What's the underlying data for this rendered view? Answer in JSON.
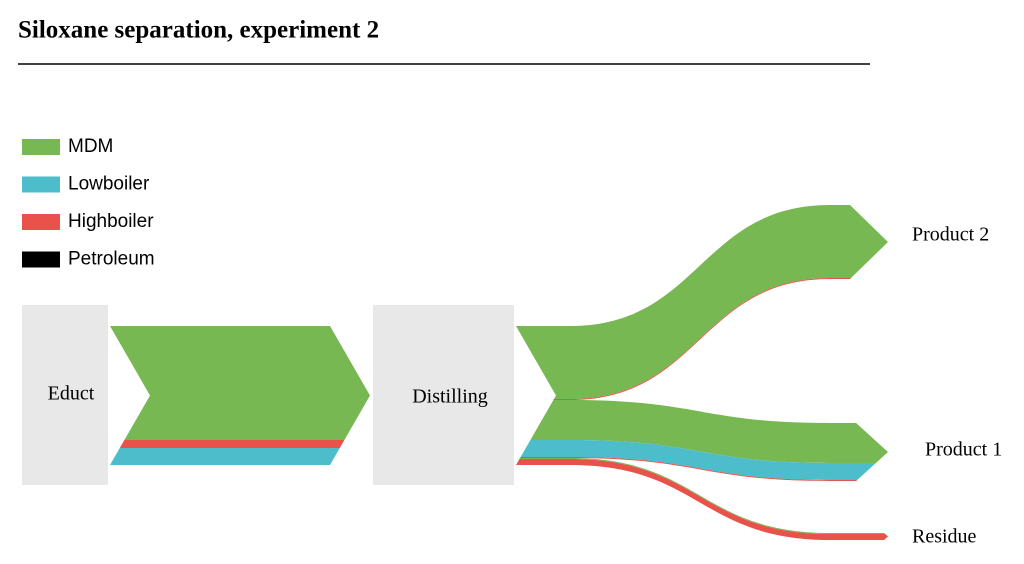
{
  "chart_data": {
    "type": "sankey",
    "title": "Siloxane separation, experiment 2",
    "materials": [
      {
        "name": "MDM",
        "color": "#77b852"
      },
      {
        "name": "Lowboiler",
        "color": "#4dbdcc"
      },
      {
        "name": "Highboiler",
        "color": "#e8524a"
      },
      {
        "name": "Petroleum",
        "color": "#000000"
      }
    ],
    "nodes": [
      "Educt",
      "Distilling",
      "Product 2",
      "Product 1",
      "Residue"
    ],
    "links": [
      {
        "source": 0,
        "target": 1,
        "material": 0,
        "value": 114
      },
      {
        "source": 0,
        "target": 1,
        "material": 2,
        "value": 8
      },
      {
        "source": 0,
        "target": 1,
        "material": 1,
        "value": 17
      },
      {
        "source": 1,
        "target": 2,
        "material": 0,
        "value": 73
      },
      {
        "source": 1,
        "target": 2,
        "material": 2,
        "value": 1
      },
      {
        "source": 1,
        "target": 3,
        "material": 0,
        "value": 40
      },
      {
        "source": 1,
        "target": 3,
        "material": 1,
        "value": 17
      },
      {
        "source": 1,
        "target": 3,
        "material": 2,
        "value": 1
      },
      {
        "source": 1,
        "target": 4,
        "material": 0,
        "value": 1
      },
      {
        "source": 1,
        "target": 4,
        "material": 2,
        "value": 6
      }
    ]
  }
}
